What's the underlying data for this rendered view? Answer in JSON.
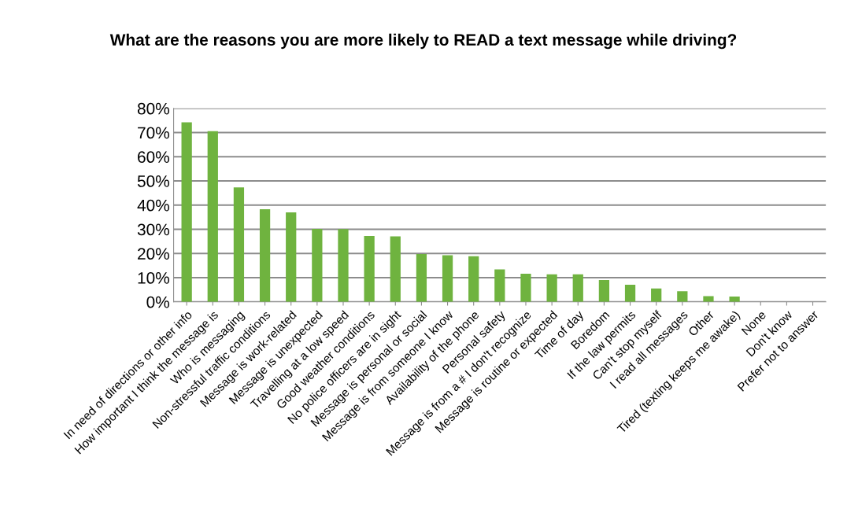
{
  "chart_data": {
    "type": "bar",
    "title": "What are the reasons you are more likely to READ a text message while driving?",
    "categories": [
      "In need of directions or other info",
      "How important I think the message is",
      "Who is messaging",
      "Non-stressful traffic conditions",
      "Message is work-related",
      "Message is unexpected",
      "Travelling at a low speed",
      "Good weather conditions",
      "No police officers are in sight",
      "Message is personal or social",
      "Message is from someone I know",
      "Availability of the phone",
      "Personal safety",
      "Message is from a # I don't recognize",
      "Message is routine or expected",
      "Time of day",
      "Boredom",
      "If the law permits",
      "Can't stop myself",
      "I read all messages",
      "Other",
      "Tired (texting keeps me awake)",
      "None",
      "Don't know",
      "Prefer not to answer"
    ],
    "values": [
      74.2,
      70.6,
      47.3,
      38.3,
      37.0,
      30.2,
      30.1,
      27.2,
      27.1,
      19.8,
      19.3,
      18.9,
      13.4,
      11.6,
      11.4,
      11.4,
      9.0,
      7.1,
      5.5,
      4.4,
      2.4,
      2.2,
      0,
      0,
      0
    ],
    "color": "#6fb33f",
    "ylim": [
      0,
      80
    ],
    "yticks": [
      {
        "value": 0,
        "label": "0%"
      },
      {
        "value": 10,
        "label": "10%"
      },
      {
        "value": 20,
        "label": "20%"
      },
      {
        "value": 30,
        "label": "30%"
      },
      {
        "value": 40,
        "label": "40%"
      },
      {
        "value": 50,
        "label": "50%"
      },
      {
        "value": 60,
        "label": "60%"
      },
      {
        "value": 70,
        "label": "70%"
      },
      {
        "value": 80,
        "label": "80%"
      }
    ],
    "grid": "y"
  }
}
